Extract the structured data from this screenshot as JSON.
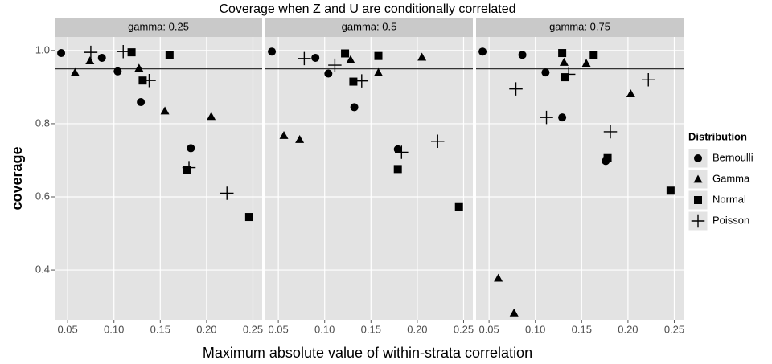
{
  "title": "Coverage when Z and U are conditionally correlated",
  "x_label": "Maximum absolute value of within-strata correlation",
  "y_label": "coverage",
  "legend": {
    "title": "Distribution",
    "items": [
      {
        "name": "Bernoulli",
        "shape": "circle",
        "color": "#000000"
      },
      {
        "name": "Gamma",
        "shape": "triangle",
        "color": "#000000"
      },
      {
        "name": "Normal",
        "shape": "square",
        "color": "#000000"
      },
      {
        "name": "Poisson",
        "shape": "plus",
        "color": "#000000"
      }
    ]
  },
  "chart_data": [
    {
      "type": "scatter",
      "title": "gamma: 0.25",
      "grid": true,
      "hline": 0.95,
      "xlim": [
        0.036,
        0.26
      ],
      "ylim": [
        0.264,
        1.037
      ],
      "xticks": [
        0.05,
        {
          "value": 0.1,
          "label": "0.10"
        },
        0.15,
        {
          "value": 0.2,
          "label": "0.20"
        },
        0.25
      ],
      "yticks": [
        0.4,
        0.6,
        0.8,
        {
          "value": 1,
          "label": "1.0"
        }
      ],
      "series": [
        {
          "x": [
            0.043,
            0.087,
            0.104,
            0.129,
            0.183
          ],
          "values": [
            0.993,
            0.98,
            0.943,
            0.859,
            0.733
          ]
        },
        {
          "x": [
            0.058,
            0.074,
            0.127,
            0.155,
            0.205
          ],
          "values": [
            0.94,
            0.972,
            0.952,
            0.835,
            0.82
          ]
        },
        {
          "x": [
            0.119,
            0.131,
            0.16,
            0.179,
            0.246
          ],
          "values": [
            0.995,
            0.918,
            0.987,
            0.674,
            0.545
          ]
        },
        {
          "x": [
            0.075,
            0.11,
            0.138,
            0.181,
            0.222
          ],
          "values": [
            0.995,
            0.997,
            0.918,
            0.68,
            0.61
          ]
        }
      ]
    },
    {
      "type": "scatter",
      "title": "gamma: 0.5",
      "grid": true,
      "hline": 0.95,
      "xlim": [
        0.036,
        0.26
      ],
      "ylim": [
        0.264,
        1.037
      ],
      "xticks": [
        0.05,
        {
          "value": 0.1,
          "label": "0.10"
        },
        0.15,
        {
          "value": 0.2,
          "label": "0.20"
        },
        0.25
      ],
      "yticks": [
        0.4,
        0.6,
        0.8,
        1
      ],
      "series": [
        {
          "x": [
            0.043,
            0.09,
            0.104,
            0.132,
            0.179
          ],
          "values": [
            0.997,
            0.98,
            0.937,
            0.845,
            0.73
          ]
        },
        {
          "x": [
            0.056,
            0.073,
            0.128,
            0.158,
            0.205
          ],
          "values": [
            0.768,
            0.757,
            0.975,
            0.94,
            0.982
          ]
        },
        {
          "x": [
            0.122,
            0.131,
            0.158,
            0.179,
            0.245
          ],
          "values": [
            0.992,
            0.915,
            0.985,
            0.676,
            0.572
          ]
        },
        {
          "x": [
            0.078,
            0.111,
            0.14,
            0.183,
            0.222
          ],
          "values": [
            0.978,
            0.96,
            0.917,
            0.722,
            0.752
          ]
        }
      ]
    },
    {
      "type": "scatter",
      "title": "gamma: 0.75",
      "grid": true,
      "hline": 0.95,
      "xlim": [
        0.036,
        0.26
      ],
      "ylim": [
        0.264,
        1.037
      ],
      "xticks": [
        0.05,
        {
          "value": 0.1,
          "label": "0.10"
        },
        0.15,
        {
          "value": 0.2,
          "label": "0.20"
        },
        0.25
      ],
      "yticks": [
        0.4,
        0.6,
        0.8,
        1
      ],
      "series": [
        {
          "x": [
            0.043,
            0.086,
            0.111,
            0.129,
            0.176
          ],
          "values": [
            0.997,
            0.988,
            0.94,
            0.817,
            0.698
          ]
        },
        {
          "x": [
            0.06,
            0.077,
            0.131,
            0.155,
            0.203
          ],
          "values": [
            0.378,
            0.283,
            0.968,
            0.965,
            0.882
          ]
        },
        {
          "x": [
            0.129,
            0.132,
            0.163,
            0.178,
            0.246
          ],
          "values": [
            0.993,
            0.927,
            0.987,
            0.706,
            0.617
          ]
        },
        {
          "x": [
            0.079,
            0.112,
            0.136,
            0.181,
            0.222
          ],
          "values": [
            0.895,
            0.817,
            0.935,
            0.778,
            0.92
          ]
        }
      ]
    }
  ]
}
